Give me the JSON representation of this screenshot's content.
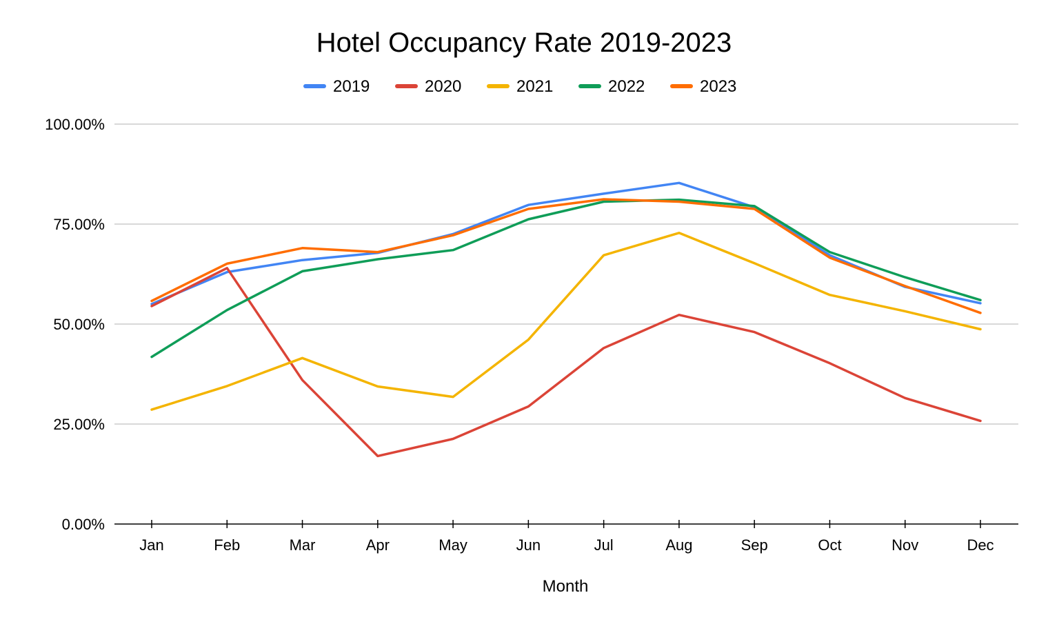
{
  "chart_data": {
    "type": "line",
    "title": "Hotel Occupancy Rate 2019-2023",
    "xlabel": "Month",
    "ylabel": "",
    "ylim": [
      0,
      100
    ],
    "y_ticks": [
      "0.00%",
      "25.00%",
      "50.00%",
      "75.00%",
      "100.00%"
    ],
    "y_tick_values": [
      0,
      25,
      50,
      75,
      100
    ],
    "legend_position": "top",
    "grid": true,
    "categories": [
      "Jan",
      "Feb",
      "Mar",
      "Apr",
      "May",
      "Jun",
      "Jul",
      "Aug",
      "Sep",
      "Oct",
      "Nov",
      "Dec"
    ],
    "series": [
      {
        "name": "2019",
        "color": "#4285F4",
        "values": [
          55.0,
          63.0,
          66.0,
          67.8,
          72.5,
          79.8,
          82.6,
          85.3,
          79.2,
          67.2,
          59.3,
          55.2
        ]
      },
      {
        "name": "2020",
        "color": "#DB4437",
        "values": [
          54.5,
          64.0,
          36.0,
          17.0,
          21.3,
          29.4,
          44.0,
          52.3,
          48.0,
          40.2,
          31.5,
          25.8
        ]
      },
      {
        "name": "2021",
        "color": "#F4B400",
        "values": [
          28.6,
          34.5,
          41.5,
          34.4,
          31.8,
          46.1,
          67.2,
          72.8,
          65.2,
          57.3,
          53.2,
          48.7
        ]
      },
      {
        "name": "2022",
        "color": "#0F9D58",
        "values": [
          41.8,
          53.5,
          63.2,
          66.2,
          68.5,
          76.2,
          80.6,
          81.1,
          79.5,
          68.0,
          61.7,
          56.0
        ]
      },
      {
        "name": "2023",
        "color": "#FF6D01",
        "values": [
          55.8,
          65.1,
          69.0,
          68.0,
          72.2,
          78.8,
          81.2,
          80.6,
          78.8,
          66.6,
          59.5,
          52.8
        ]
      }
    ]
  }
}
